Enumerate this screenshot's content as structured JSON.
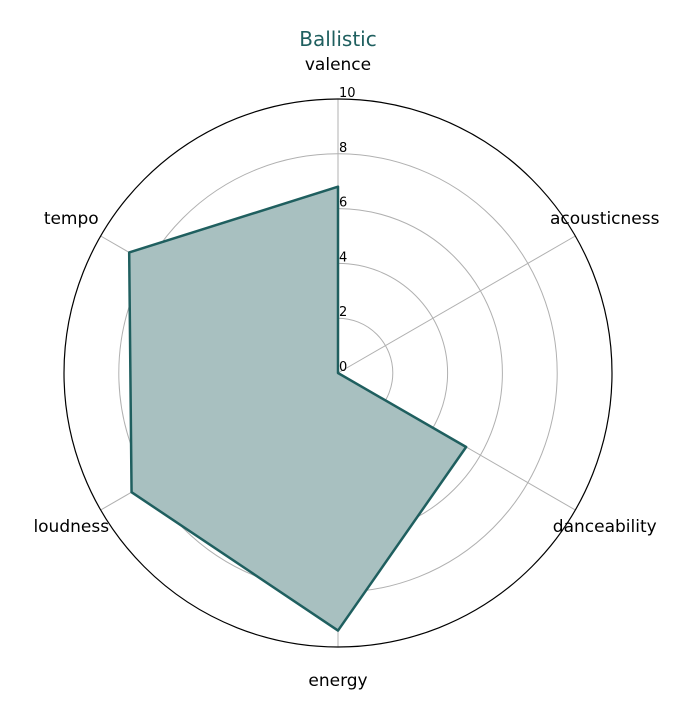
{
  "chart_data": {
    "type": "radar",
    "title": "Ballistic",
    "axes": [
      "valence",
      "acousticness",
      "danceability",
      "energy",
      "loudness",
      "tempo"
    ],
    "values": [
      6.8,
      0.0,
      5.4,
      9.4,
      8.7,
      8.8
    ],
    "rlim": [
      0,
      10
    ],
    "rticks": [
      "0",
      "2",
      "4",
      "6",
      "8",
      "10"
    ],
    "grid": true,
    "colors": {
      "title": "#1f5f5f",
      "line": "#1f5f5f",
      "fill": "#a8c0c0"
    }
  }
}
